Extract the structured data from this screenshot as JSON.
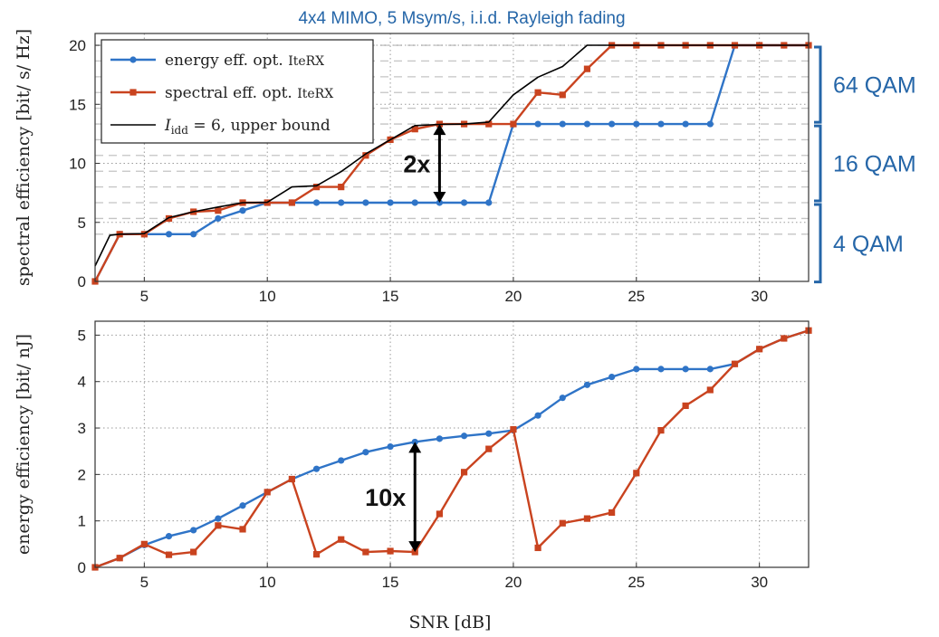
{
  "title": "4x4 MIMO, 5 Msym/s, i.i.d. Rayleigh fading",
  "colors": {
    "energy": "#2f74c7",
    "spectral": "#c9431f",
    "bound": "#000000",
    "title": "#2566a8",
    "qam": "#2566a8"
  },
  "chart_data": [
    {
      "type": "line",
      "ylabel": "spectral efficiency [bit/ s/ Hz]",
      "xlim": [
        3,
        32
      ],
      "ylim": [
        0,
        21
      ],
      "xticks": [
        5,
        10,
        15,
        20,
        25,
        30
      ],
      "yticks": [
        0,
        5,
        10,
        15,
        20
      ],
      "grid": true,
      "legend_position": "top-left",
      "legend": [
        {
          "label": "energy eff. opt. IteRX",
          "name_main": "energy eff. opt.",
          "name_suffix": "IteRX",
          "color_key": "energy",
          "marker": "circle"
        },
        {
          "label": "spectral eff. opt. IteRX",
          "name_main": "spectral eff. opt.",
          "name_suffix": "IteRX",
          "color_key": "spectral",
          "marker": "square"
        },
        {
          "label": "I_idd = 6, upper bound",
          "name_main": "I",
          "name_sub": "idd",
          "name_rest": " = 6, upper bound",
          "color_key": "bound",
          "marker": "none"
        }
      ],
      "ref_levels": [
        4,
        5.33,
        6.67,
        8,
        9.33,
        10.67,
        12,
        13.33,
        14.67,
        16,
        17.33,
        18.67,
        20
      ],
      "x": [
        3,
        4,
        5,
        6,
        7,
        8,
        9,
        10,
        11,
        12,
        13,
        14,
        15,
        16,
        17,
        18,
        19,
        20,
        21,
        22,
        23,
        24,
        25,
        26,
        27,
        28,
        29,
        30,
        31,
        32
      ],
      "series": [
        {
          "name": "energy eff. opt. IteRX",
          "color_key": "energy",
          "marker": "circle",
          "values": [
            0,
            4,
            4,
            4,
            4,
            5.33,
            6,
            6.67,
            6.67,
            6.67,
            6.67,
            6.67,
            6.67,
            6.67,
            6.67,
            6.67,
            6.67,
            13.33,
            13.33,
            13.33,
            13.33,
            13.33,
            13.33,
            13.33,
            13.33,
            13.33,
            20,
            20,
            20,
            20
          ]
        },
        {
          "name": "spectral eff. opt. IteRX",
          "color_key": "spectral",
          "marker": "square",
          "values": [
            0,
            4,
            4,
            5.33,
            5.9,
            6,
            6.67,
            6.67,
            6.67,
            8,
            8,
            10.67,
            12,
            12.9,
            13.33,
            13.33,
            13.33,
            13.33,
            16,
            15.8,
            18,
            20,
            20,
            20,
            20,
            20,
            20,
            20,
            20,
            20
          ]
        },
        {
          "name": "I_idd = 6, upper bound",
          "color_key": "bound",
          "marker": "none",
          "points": [
            [
              3,
              1.3
            ],
            [
              3.6,
              3.9
            ],
            [
              4,
              4
            ],
            [
              5,
              4.05
            ],
            [
              6,
              5.4
            ],
            [
              7,
              5.9
            ],
            [
              8,
              6.3
            ],
            [
              9,
              6.67
            ],
            [
              10,
              6.7
            ],
            [
              11,
              8
            ],
            [
              12,
              8.1
            ],
            [
              13,
              9.3
            ],
            [
              14,
              10.8
            ],
            [
              15,
              12
            ],
            [
              16,
              13.2
            ],
            [
              17,
              13.3
            ],
            [
              18,
              13.33
            ],
            [
              19,
              13.5
            ],
            [
              20,
              15.8
            ],
            [
              21,
              17.3
            ],
            [
              22,
              18.2
            ],
            [
              23,
              20
            ],
            [
              24,
              20
            ],
            [
              32,
              20
            ]
          ]
        }
      ],
      "annotations": [
        {
          "text": "2x",
          "x": 17,
          "y_from": 6.67,
          "y_to": 13.33
        }
      ],
      "brackets": [
        {
          "label": "64 QAM",
          "y_from": 13.33,
          "y_to": 20
        },
        {
          "label": "16 QAM",
          "y_from": 6.67,
          "y_to": 13.33
        },
        {
          "label": "4 QAM",
          "y_from": -0.2,
          "y_to": 6.67
        }
      ]
    },
    {
      "type": "line",
      "ylabel": "energy efficiency [bit/ nJ]",
      "xlabel": "SNR [dB]",
      "xlim": [
        3,
        32
      ],
      "ylim": [
        0,
        5.3
      ],
      "xticks": [
        5,
        10,
        15,
        20,
        25,
        30
      ],
      "yticks": [
        0,
        1,
        2,
        3,
        4,
        5
      ],
      "grid": true,
      "x": [
        3,
        4,
        5,
        6,
        7,
        8,
        9,
        10,
        11,
        12,
        13,
        14,
        15,
        16,
        17,
        18,
        19,
        20,
        21,
        22,
        23,
        24,
        25,
        26,
        27,
        28,
        29,
        30,
        31,
        32
      ],
      "series": [
        {
          "name": "energy eff. opt. IteRX",
          "color_key": "energy",
          "marker": "circle",
          "values": [
            0,
            0.2,
            0.48,
            0.67,
            0.8,
            1.05,
            1.33,
            1.62,
            1.9,
            2.12,
            2.3,
            2.48,
            2.6,
            2.7,
            2.77,
            2.83,
            2.88,
            2.95,
            3.27,
            3.65,
            3.93,
            4.1,
            4.27,
            4.27,
            4.27,
            4.27,
            4.38,
            4.7,
            4.93,
            5.1
          ]
        },
        {
          "name": "spectral eff. opt. IteRX",
          "color_key": "spectral",
          "marker": "square",
          "values": [
            0,
            0.2,
            0.5,
            0.27,
            0.33,
            0.9,
            0.82,
            1.62,
            1.9,
            0.28,
            0.6,
            0.33,
            0.35,
            0.33,
            1.15,
            2.05,
            2.55,
            2.97,
            0.42,
            0.95,
            1.05,
            1.18,
            2.03,
            2.95,
            3.48,
            3.82,
            4.38,
            4.7,
            4.93,
            5.1
          ]
        }
      ],
      "annotations": [
        {
          "text": "10x",
          "x": 16,
          "y_from": 0.33,
          "y_to": 2.7
        }
      ]
    }
  ]
}
